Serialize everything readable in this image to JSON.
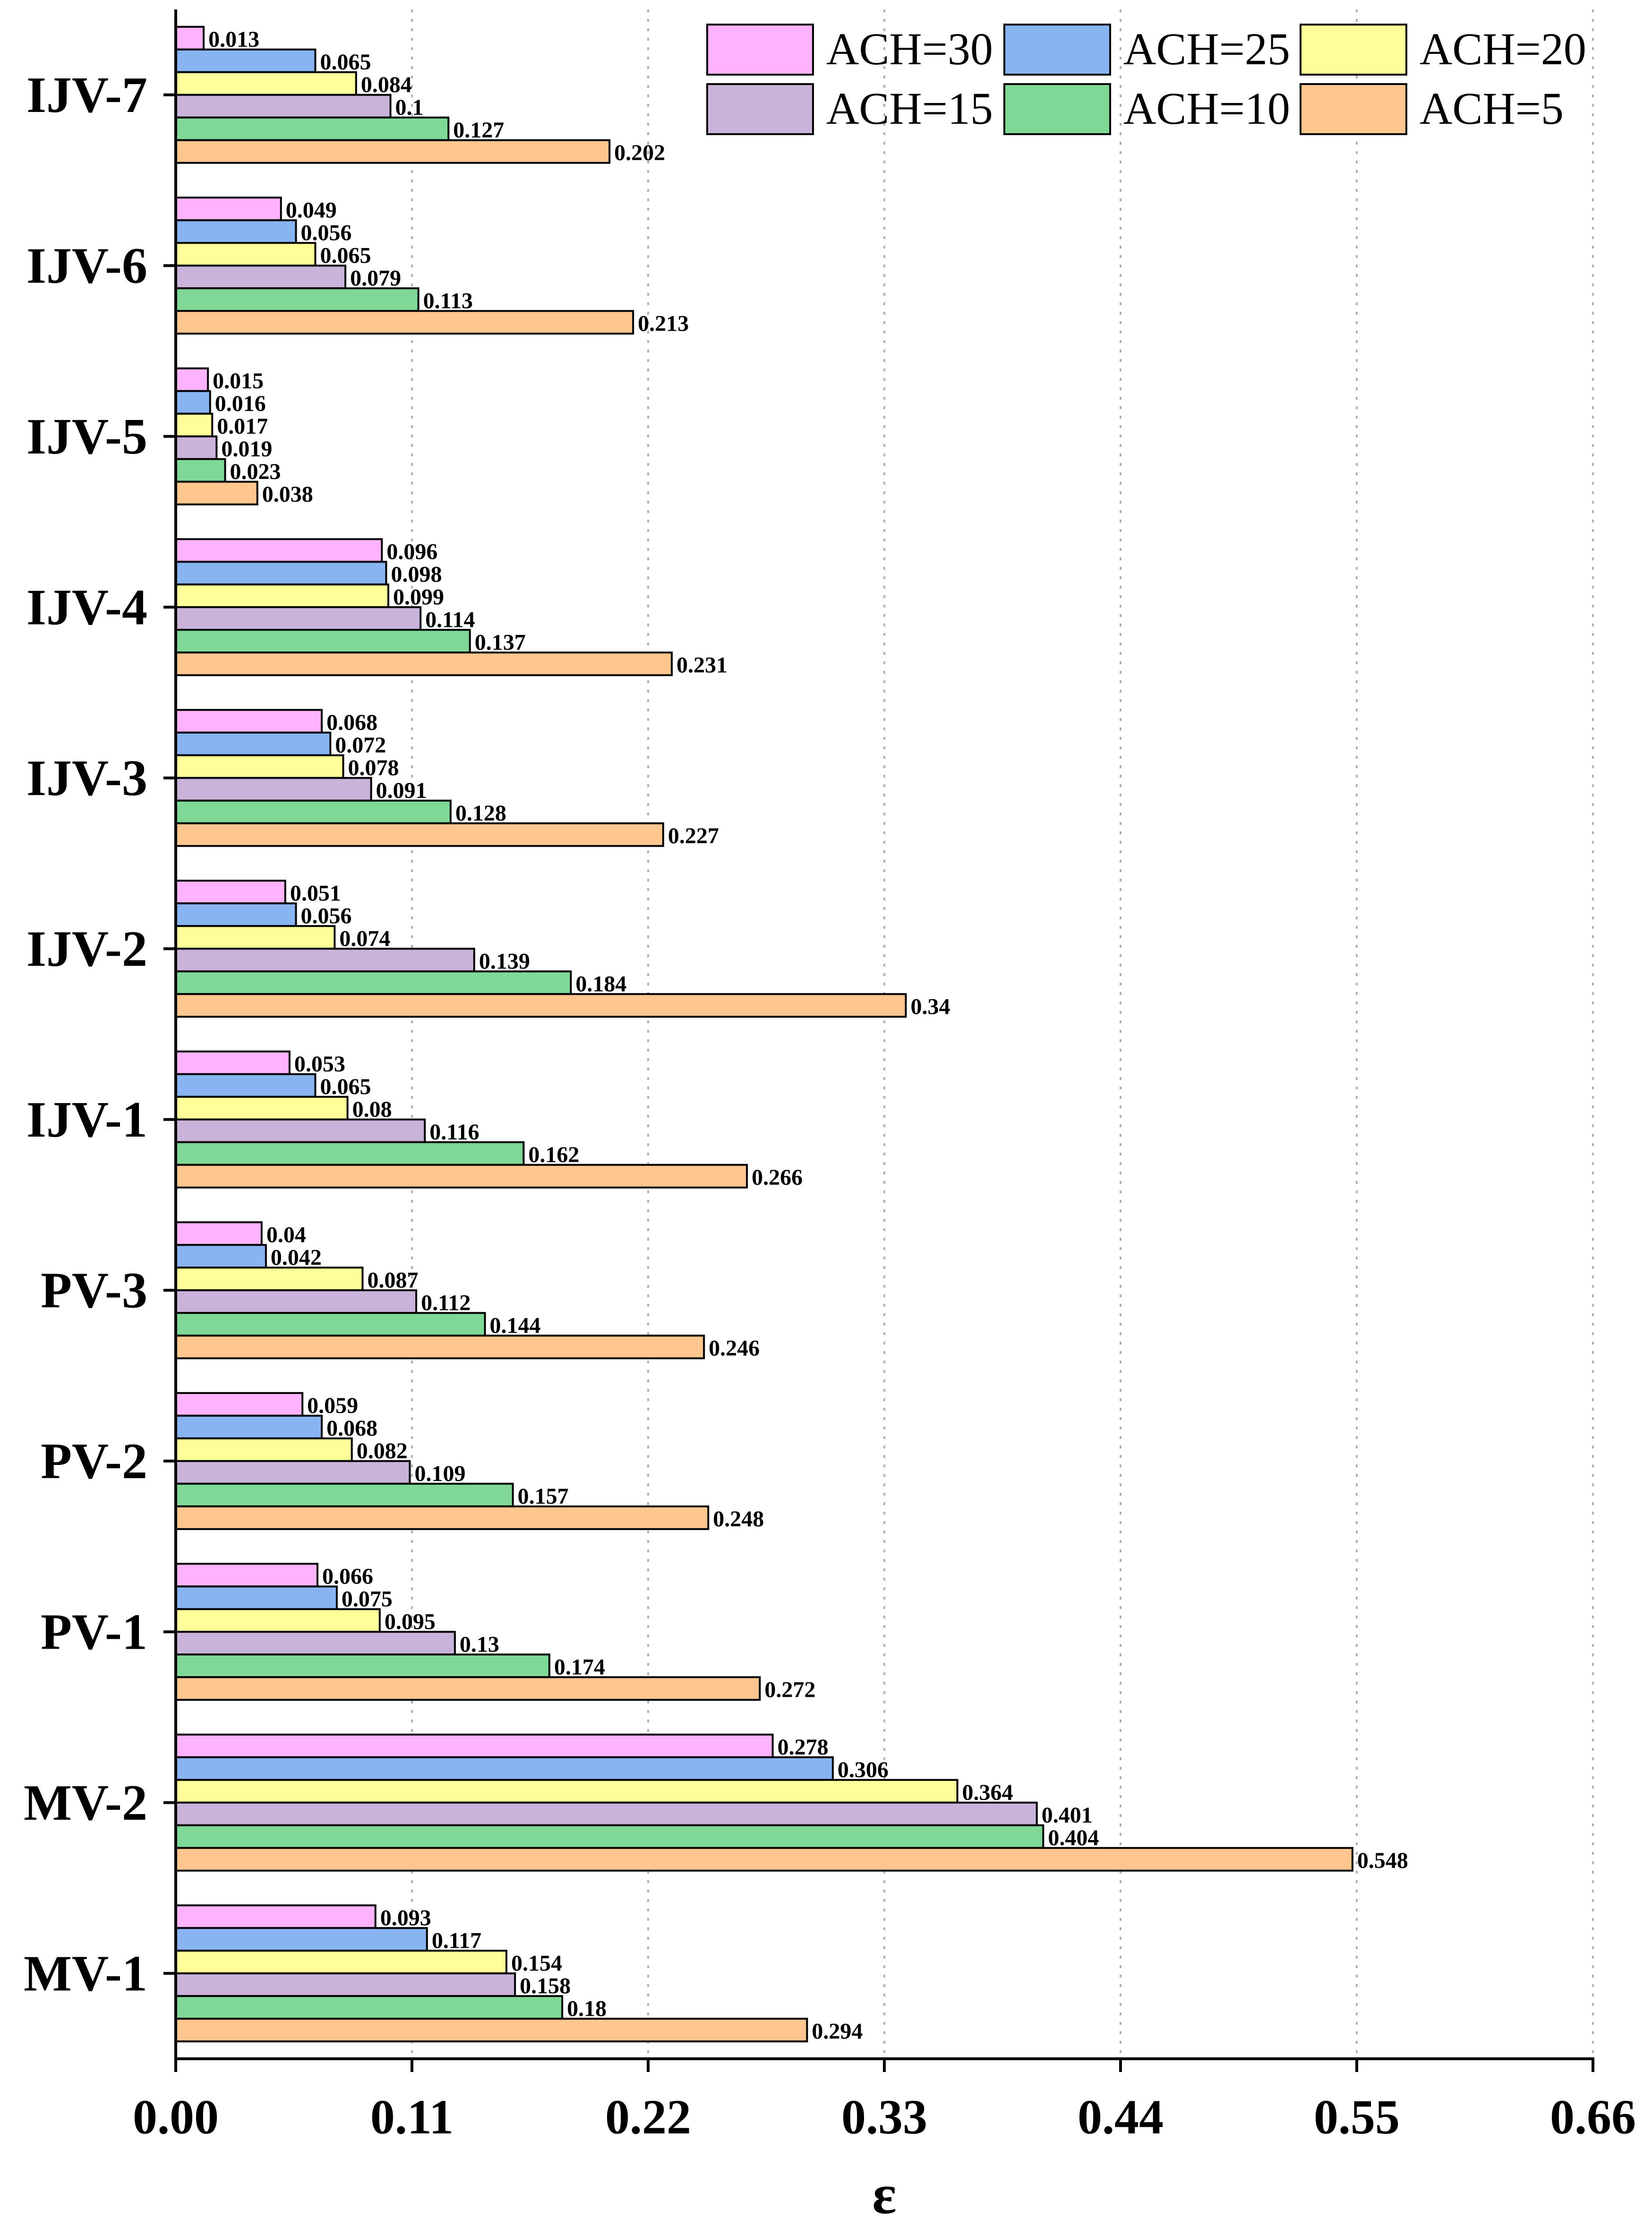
{
  "chart_data": {
    "type": "bar",
    "orientation": "horizontal",
    "title": "",
    "xlabel": "ε",
    "ylabel": "",
    "xlim": [
      0,
      0.66
    ],
    "xticks": [
      "0.00",
      "0.11",
      "0.22",
      "0.33",
      "0.44",
      "0.55",
      "0.66"
    ],
    "grid": "vertical-dotted",
    "legend_position": "top-right",
    "categories": [
      "MV-1",
      "MV-2",
      "PV-1",
      "PV-2",
      "PV-3",
      "IJV-1",
      "IJV-2",
      "IJV-3",
      "IJV-4",
      "IJV-5",
      "IJV-6",
      "IJV-7"
    ],
    "series": [
      {
        "name": "ACH=30",
        "color": "#FFB3FF",
        "values": [
          0.093,
          0.278,
          0.066,
          0.059,
          0.04,
          0.053,
          0.051,
          0.068,
          0.096,
          0.015,
          0.049,
          0.013
        ]
      },
      {
        "name": "ACH=25",
        "color": "#88B4F2",
        "values": [
          0.117,
          0.306,
          0.075,
          0.068,
          0.042,
          0.065,
          0.056,
          0.072,
          0.098,
          0.016,
          0.056,
          0.065
        ]
      },
      {
        "name": "ACH=20",
        "color": "#FFFF99",
        "values": [
          0.154,
          0.364,
          0.095,
          0.082,
          0.087,
          0.08,
          0.074,
          0.078,
          0.099,
          0.017,
          0.065,
          0.084
        ]
      },
      {
        "name": "ACH=15",
        "color": "#C9B3DA",
        "values": [
          0.158,
          0.401,
          0.13,
          0.109,
          0.112,
          0.116,
          0.139,
          0.091,
          0.114,
          0.019,
          0.079,
          0.1
        ]
      },
      {
        "name": "ACH=10",
        "color": "#7FD896",
        "values": [
          0.18,
          0.404,
          0.174,
          0.157,
          0.144,
          0.162,
          0.184,
          0.128,
          0.137,
          0.023,
          0.113,
          0.127
        ]
      },
      {
        "name": "ACH=5",
        "color": "#FFC68F",
        "values": [
          0.294,
          0.548,
          0.272,
          0.248,
          0.246,
          0.266,
          0.34,
          0.227,
          0.231,
          0.038,
          0.213,
          0.202
        ]
      }
    ],
    "value_labels": [
      [
        "0.093",
        "0.278",
        "0.066",
        "0.059",
        "0.04",
        "0.053",
        "0.051",
        "0.068",
        "0.096",
        "0.015",
        "0.049",
        "0.013"
      ],
      [
        "0.117",
        "0.306",
        "0.075",
        "0.068",
        "0.042",
        "0.065",
        "0.056",
        "0.072",
        "0.098",
        "0.016",
        "0.056",
        "0.065"
      ],
      [
        "0.154",
        "0.364",
        "0.095",
        "0.082",
        "0.087",
        "0.08",
        "0.074",
        "0.078",
        "0.099",
        "0.017",
        "0.065",
        "0.084"
      ],
      [
        "0.158",
        "0.401",
        "0.13",
        "0.109",
        "0.112",
        "0.116",
        "0.139",
        "0.091",
        "0.114",
        "0.019",
        "0.079",
        "0.1"
      ],
      [
        "0.18",
        "0.404",
        "0.174",
        "0.157",
        "0.144",
        "0.162",
        "0.184",
        "0.128",
        "0.137",
        "0.023",
        "0.113",
        "0.127"
      ],
      [
        "0.294",
        "0.548",
        "0.272",
        "0.248",
        "0.246",
        "0.266",
        "0.34",
        "0.227",
        "0.231",
        "0.038",
        "0.213",
        "0.202"
      ]
    ],
    "legend_order": [
      "ACH=30",
      "ACH=25",
      "ACH=20",
      "ACH=15",
      "ACH=10",
      "ACH=5"
    ]
  }
}
